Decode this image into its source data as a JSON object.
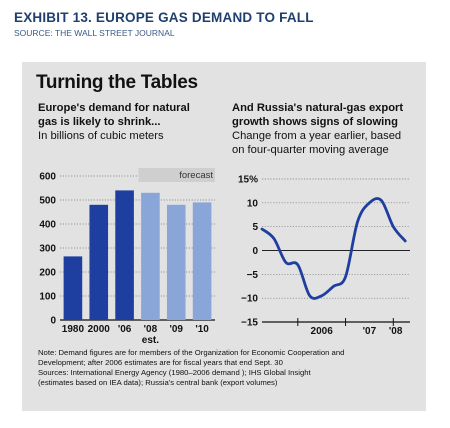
{
  "exhibit": {
    "title": "EXHIBIT 13. EUROPE GAS DEMAND TO FALL",
    "source": "SOURCE: THE WALL STREET JOURNAL"
  },
  "panel": {
    "title": "Turning the Tables",
    "note_lines": [
      "Note: Demand figures are for members of the Organization for Economic Cooperation and",
      "Development; after 2006 estimates are for fiscal years that end Sept. 30",
      "Sources: International Energy Agency (1980–2006 demand ); IHS Global Insight",
      "(estimates based on IEA data); Russia's central bank (export volumes)"
    ]
  },
  "left_chart": {
    "heading_lines": [
      "Europe's demand for natural",
      "gas is likely to shrink..."
    ],
    "subheading": "In billions of cubic meters",
    "forecast_label": "forecast",
    "est_label": "est."
  },
  "right_chart": {
    "heading_lines": [
      "And Russia's natural-gas export",
      "growth shows signs of slowing"
    ],
    "subheading_lines": [
      "Change from a year earlier, based",
      "on four-quarter moving average"
    ]
  },
  "chart_data": [
    {
      "type": "bar",
      "title": "Europe's demand for natural gas is likely to shrink...",
      "ylabel": "In billions of cubic meters",
      "categories": [
        "1980",
        "2000",
        "'06",
        "'08",
        "'09",
        "'10"
      ],
      "values": [
        265,
        480,
        540,
        530,
        480,
        490
      ],
      "forecast_from_index": 3,
      "ylim": [
        0,
        600
      ],
      "yticks": [
        0,
        100,
        200,
        300,
        400,
        500,
        600
      ],
      "ytick_labels": [
        "0",
        "100",
        "200",
        "300",
        "400",
        "500",
        "600"
      ],
      "grid": true,
      "colors": {
        "actual": "#1f3fa0",
        "forecast": "#8aa6d8"
      }
    },
    {
      "type": "line",
      "title": "And Russia's natural-gas export growth shows signs of slowing",
      "ylabel": "Change from a year earlier, based on four-quarter moving average",
      "x": [
        2005.25,
        2005.5,
        2005.75,
        2006.0,
        2006.25,
        2006.5,
        2006.75,
        2007.0,
        2007.25,
        2007.5,
        2007.75,
        2008.0,
        2008.25
      ],
      "y": [
        4.5,
        2.5,
        -2.5,
        -3,
        -9.5,
        -9.5,
        -7.5,
        -5.5,
        6,
        10,
        10.5,
        5,
        2
      ],
      "xtick_labels": [
        "2006",
        "'07",
        "'08"
      ],
      "ylim": [
        -15,
        15
      ],
      "yticks": [
        -15,
        -10,
        -5,
        0,
        5,
        10,
        15
      ],
      "ytick_labels": [
        "−15",
        "−10",
        "−5",
        "0",
        "5",
        "10",
        "15%"
      ],
      "grid": true,
      "colors": {
        "line": "#1f3fa0"
      }
    }
  ]
}
